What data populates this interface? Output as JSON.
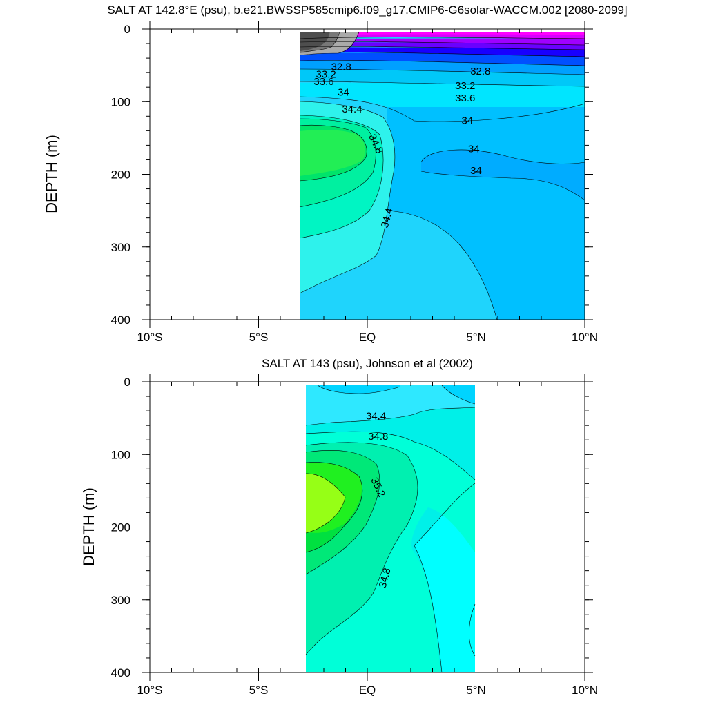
{
  "chart_data": [
    {
      "type": "contour",
      "title": "SALT AT 142.8°E (psu), b.e21.BWSSP585cmip6.f09_g17.CMIP6-G6solar-WACCM.002 [2080-2099]",
      "xlabel": "",
      "ylabel": "DEPTH (m)",
      "xlim": [
        -10,
        10
      ],
      "ylim": [
        400,
        0
      ],
      "x_ticks": [
        -10,
        -5,
        0,
        5,
        10
      ],
      "x_tick_labels": [
        "10°S",
        "5°S",
        "EQ",
        "5°N",
        "10°N"
      ],
      "y_ticks": [
        0,
        100,
        200,
        300,
        400
      ],
      "y_tick_labels": [
        "0",
        "100",
        "200",
        "300",
        "400"
      ],
      "data_extent": {
        "lat": [
          -3.1,
          10
        ],
        "depth": [
          0,
          400
        ]
      },
      "contour_labels": [
        {
          "text": "32.8",
          "lat": -1.2,
          "depth": 52
        },
        {
          "text": "33.2",
          "lat": -1.9,
          "depth": 62
        },
        {
          "text": "33.6",
          "lat": -2.0,
          "depth": 72
        },
        {
          "text": "34",
          "lat": -1.1,
          "depth": 87
        },
        {
          "text": "34.4",
          "lat": -0.7,
          "depth": 110
        },
        {
          "text": "34.8",
          "lat": 0.4,
          "depth": 158,
          "rotate": 65
        },
        {
          "text": "34.4",
          "lat": 0.9,
          "depth": 260,
          "rotate": -75
        },
        {
          "text": "32.8",
          "lat": 5.2,
          "depth": 58
        },
        {
          "text": "33.2",
          "lat": 4.5,
          "depth": 78
        },
        {
          "text": "33.6",
          "lat": 4.5,
          "depth": 95
        },
        {
          "text": "34",
          "lat": 4.6,
          "depth": 126
        },
        {
          "text": "34",
          "lat": 4.9,
          "depth": 165
        },
        {
          "text": "34",
          "lat": 5.0,
          "depth": 195
        }
      ]
    },
    {
      "type": "contour",
      "title": "SALT AT 143 (psu), Johnson et al (2002)",
      "xlabel": "",
      "ylabel": "DEPTH (m)",
      "xlim": [
        -10,
        10
      ],
      "ylim": [
        400,
        0
      ],
      "x_ticks": [
        -10,
        -5,
        0,
        5,
        10
      ],
      "x_tick_labels": [
        "10°S",
        "5°S",
        "EQ",
        "5°N",
        "10°N"
      ],
      "y_ticks": [
        0,
        100,
        200,
        300,
        400
      ],
      "y_tick_labels": [
        "0",
        "100",
        "200",
        "300",
        "400"
      ],
      "data_extent": {
        "lat": [
          -2.8,
          5
        ],
        "depth": [
          5,
          400
        ]
      },
      "contour_labels": [
        {
          "text": "34.4",
          "lat": 0.4,
          "depth": 47
        },
        {
          "text": "34.8",
          "lat": 0.5,
          "depth": 75
        },
        {
          "text": "35.2",
          "lat": 0.5,
          "depth": 145,
          "rotate": 65
        },
        {
          "text": "34.8",
          "lat": 0.8,
          "depth": 270,
          "rotate": -75
        }
      ]
    }
  ]
}
